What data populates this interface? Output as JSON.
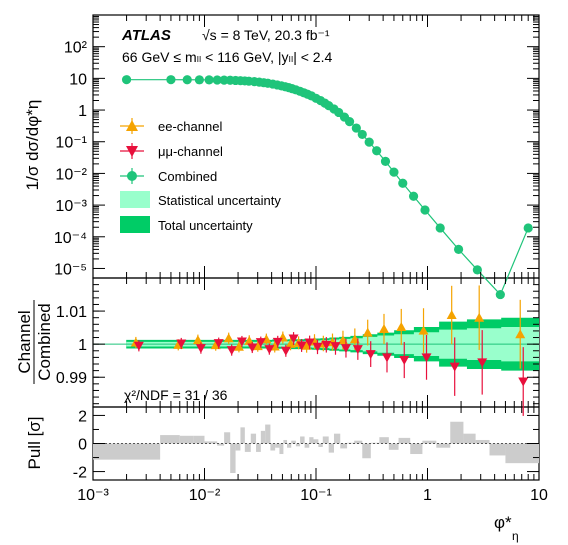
{
  "chart_data": {
    "type": "scatter",
    "xscale": "log",
    "xlim": [
      0.001,
      10
    ],
    "xlabel_main": "φ*",
    "xlabel_sub": "η",
    "x_tick_labels": [
      "10⁻³",
      "10⁻²",
      "10⁻¹",
      "1",
      "10"
    ],
    "experiment": "ATLAS",
    "energy_label": "√s = 8 TeV, 20.3 fb⁻¹",
    "selection_label": "66 GeV ≤ mₗₗ < 116 GeV, |yₗₗ| < 2.4",
    "chi2_label": "χ²/NDF = 31 / 36",
    "colors": {
      "ee": "#f5a300",
      "mm": "#e8103c",
      "comb": "#1fc47a",
      "stat": "#99ffcc",
      "total": "#00cc66",
      "pull": "#cccccc"
    },
    "top_panel": {
      "ylabel": "1/σ dσ/dφ*η",
      "ylim": [
        5e-06,
        1000
      ],
      "yscale": "log",
      "y_tick_labels": [
        "10²",
        "10",
        "1",
        "10⁻¹",
        "10⁻²",
        "10⁻³",
        "10⁻⁴",
        "10⁻⁵"
      ],
      "legend": [
        "ee-channel",
        "μμ-channel",
        "Combined",
        "Statistical uncertainty",
        "Total uncertainty"
      ],
      "legend_placement": "center-left",
      "series": [
        {
          "name": "Combined",
          "x": [
            0.002,
            0.005,
            0.007,
            0.009,
            0.011,
            0.013,
            0.015,
            0.017,
            0.019,
            0.021,
            0.023,
            0.025,
            0.028,
            0.031,
            0.034,
            0.037,
            0.041,
            0.045,
            0.049,
            0.053,
            0.057,
            0.061,
            0.066,
            0.072,
            0.078,
            0.084,
            0.091,
            0.1,
            0.11,
            0.12,
            0.13,
            0.145,
            0.16,
            0.18,
            0.2,
            0.23,
            0.26,
            0.3,
            0.35,
            0.42,
            0.5,
            0.6,
            0.75,
            0.95,
            1.3,
            1.9,
            2.8,
            4.5,
            8
          ],
          "y": [
            9.1,
            9.1,
            9.05,
            9.0,
            8.95,
            8.9,
            8.8,
            8.7,
            8.6,
            8.45,
            8.3,
            8.15,
            7.9,
            7.6,
            7.3,
            7.0,
            6.6,
            6.2,
            5.8,
            5.45,
            5.1,
            4.75,
            4.35,
            3.9,
            3.5,
            3.15,
            2.8,
            2.35,
            1.98,
            1.65,
            1.38,
            1.08,
            0.84,
            0.6,
            0.43,
            0.27,
            0.17,
            0.097,
            0.052,
            0.024,
            0.011,
            0.0049,
            0.0019,
            0.0007,
            0.00019,
            4e-05,
            9e-06,
            1.5e-06,
            0.00019
          ]
        }
      ]
    },
    "ratio_panel": {
      "ylabel_top": "Channel",
      "ylabel_bottom": "Combined",
      "ylim": [
        0.981,
        1.02
      ],
      "y_tick_labels": [
        "1.01",
        "1",
        "0.99"
      ],
      "series": [
        {
          "name": "ee-channel",
          "x": [
            0.0025,
            0.006,
            0.009,
            0.013,
            0.017,
            0.021,
            0.026,
            0.031,
            0.037,
            0.044,
            0.052,
            0.061,
            0.072,
            0.085,
            0.1,
            0.12,
            0.145,
            0.18,
            0.23,
            0.3,
            0.42,
            0.6,
            0.95,
            1.7,
            3,
            7
          ],
          "y": [
            1.0005,
            0.9998,
            1.0012,
            0.9997,
            1.0018,
            0.9992,
            1.001,
            0.9994,
            1.0015,
            0.9993,
            1.002,
            1.0001,
            1.0004,
            0.9995,
            1.0008,
            1.0002,
            1.0006,
            1.0012,
            1.0015,
            1.0035,
            1.0046,
            1.0052,
            1.0041,
            1.0088,
            1.008,
            1.003
          ]
        },
        {
          "name": "μμ-channel",
          "x": [
            0.0025,
            0.006,
            0.009,
            0.013,
            0.017,
            0.021,
            0.026,
            0.031,
            0.037,
            0.044,
            0.052,
            0.061,
            0.072,
            0.085,
            0.1,
            0.12,
            0.145,
            0.18,
            0.23,
            0.3,
            0.42,
            0.6,
            0.95,
            1.7,
            3,
            7
          ],
          "y": [
            0.9995,
            1.0002,
            0.9988,
            1.0003,
            0.9982,
            1.0008,
            0.999,
            1.0006,
            0.9985,
            1.0007,
            0.998,
            1.0017,
            0.9996,
            1.0005,
            0.9992,
            0.9998,
            0.9994,
            0.9988,
            0.9985,
            0.997,
            0.996,
            0.9952,
            0.996,
            0.9932,
            0.9945,
            0.9887
          ]
        }
      ],
      "stat_band_halfwidth": [
        0.0007,
        0.0007,
        0.0007,
        0.0007,
        0.0007,
        0.0007,
        0.0007,
        0.0007,
        0.0007,
        0.0008,
        0.0008,
        0.0009,
        0.0009,
        0.001,
        0.0011,
        0.0012,
        0.0014,
        0.0016,
        0.0018,
        0.0022,
        0.0026,
        0.003,
        0.0036,
        0.0044,
        0.0048,
        0.0052
      ],
      "total_band_halfwidth": [
        0.0013,
        0.0013,
        0.0013,
        0.0013,
        0.0013,
        0.0013,
        0.0013,
        0.0013,
        0.0013,
        0.0014,
        0.0014,
        0.0015,
        0.0015,
        0.0016,
        0.0017,
        0.0018,
        0.002,
        0.0022,
        0.0025,
        0.003,
        0.0035,
        0.0042,
        0.0052,
        0.0068,
        0.0075,
        0.008
      ]
    },
    "pull_panel": {
      "ylabel": "Pull [σ]",
      "ylim": [
        -2.6,
        2.6
      ],
      "y_tick_labels": [
        "2",
        "0",
        "-2"
      ],
      "bins": [
        0.001,
        0.004,
        0.006,
        0.008,
        0.01,
        0.013,
        0.015,
        0.017,
        0.019,
        0.021,
        0.023,
        0.026,
        0.029,
        0.032,
        0.035,
        0.039,
        0.043,
        0.047,
        0.051,
        0.055,
        0.06,
        0.066,
        0.072,
        0.079,
        0.087,
        0.095,
        0.105,
        0.115,
        0.13,
        0.145,
        0.165,
        0.19,
        0.22,
        0.26,
        0.31,
        0.37,
        0.45,
        0.55,
        0.7,
        0.9,
        1.2,
        1.6,
        2.1,
        2.7,
        3.6,
        5,
        10
      ],
      "values": [
        -1.15,
        0.6,
        0.55,
        0.55,
        0.15,
        -0.15,
        0.8,
        -2.1,
        -0.5,
        1.15,
        -0.6,
        0.7,
        -0.6,
        0.9,
        1.35,
        -0.5,
        -0.3,
        -0.75,
        0.25,
        -0.3,
        0.2,
        -0.2,
        0.5,
        -0.3,
        0.45,
        0.3,
        -0.25,
        0.5,
        -0.65,
        0.7,
        -0.35,
        0.05,
        0.2,
        -1.05,
        0.05,
        0.45,
        -0.45,
        0.4,
        -0.75,
        0.2,
        -0.3,
        1.55,
        0.7,
        0.25,
        -0.85,
        -1.4
      ]
    }
  }
}
